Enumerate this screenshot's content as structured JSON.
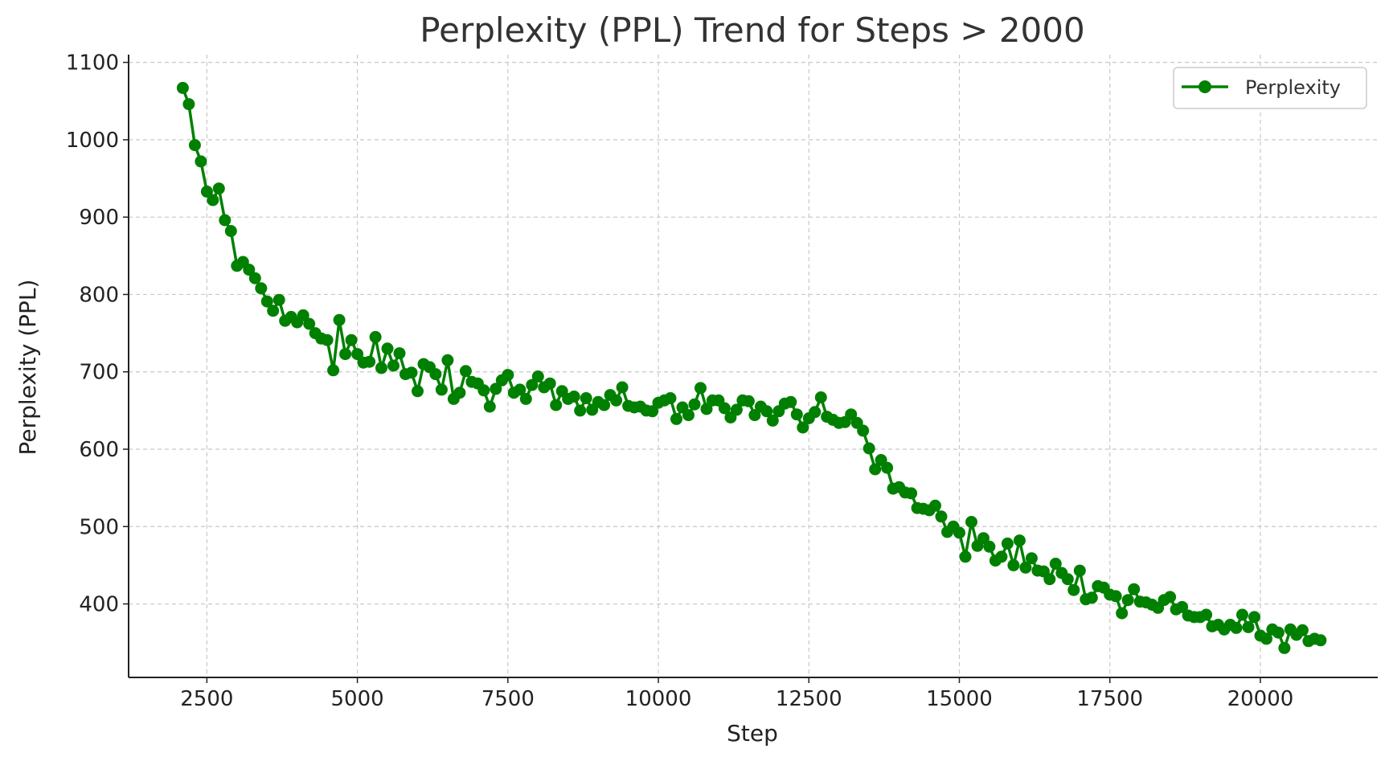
{
  "chart_data": {
    "type": "line",
    "title": "Perplexity (PPL) Trend for Steps > 2000",
    "xlabel": "Step",
    "ylabel": "Perplexity (PPL)",
    "xlim": [
      1200,
      21950
    ],
    "ylim": [
      305,
      1110
    ],
    "xticks": [
      2500,
      5000,
      7500,
      10000,
      12500,
      15000,
      17500,
      20000
    ],
    "yticks": [
      400,
      500,
      600,
      700,
      800,
      900,
      1000,
      1100
    ],
    "grid": true,
    "legend_position": "top-right",
    "series": [
      {
        "name": "Perplexity",
        "color": "#008000",
        "marker": "circle",
        "x": [
          2100,
          2200,
          2300,
          2400,
          2500,
          2600,
          2700,
          2800,
          2900,
          3000,
          3100,
          3200,
          3300,
          3400,
          3500,
          3600,
          3700,
          3800,
          3900,
          4000,
          4100,
          4200,
          4300,
          4400,
          4500,
          4600,
          4700,
          4800,
          4900,
          5000,
          5100,
          5200,
          5300,
          5400,
          5500,
          5600,
          5700,
          5800,
          5900,
          6000,
          6100,
          6200,
          6300,
          6400,
          6500,
          6600,
          6700,
          6800,
          6900,
          7000,
          7100,
          7200,
          7300,
          7400,
          7500,
          7600,
          7700,
          7800,
          7900,
          8000,
          8100,
          8200,
          8300,
          8400,
          8500,
          8600,
          8700,
          8800,
          8900,
          9000,
          9100,
          9200,
          9300,
          9400,
          9500,
          9600,
          9700,
          9800,
          9900,
          10000,
          10100,
          10200,
          10300,
          10400,
          10500,
          10600,
          10700,
          10800,
          10900,
          11000,
          11100,
          11200,
          11300,
          11400,
          11500,
          11600,
          11700,
          11800,
          11900,
          12000,
          12100,
          12200,
          12300,
          12400,
          12500,
          12600,
          12700,
          12800,
          12900,
          13000,
          13100,
          13200,
          13300,
          13400,
          13500,
          13600,
          13700,
          13800,
          13900,
          14000,
          14100,
          14200,
          14300,
          14400,
          14500,
          14600,
          14700,
          14800,
          14900,
          15000,
          15100,
          15200,
          15300,
          15400,
          15500,
          15600,
          15700,
          15800,
          15900,
          16000,
          16100,
          16200,
          16300,
          16400,
          16500,
          16600,
          16700,
          16800,
          16900,
          17000,
          17100,
          17200,
          17300,
          17400,
          17500,
          17600,
          17700,
          17800,
          17900,
          18000,
          18100,
          18200,
          18300,
          18400,
          18500,
          18600,
          18700,
          18800,
          18900,
          19000,
          19100,
          19200,
          19300,
          19400,
          19500,
          19600,
          19700,
          19800,
          19900,
          20000,
          20100,
          20200,
          20300,
          20400,
          20500,
          20600,
          20700,
          20800,
          20900,
          21000
        ],
        "y": [
          1067,
          1046,
          993,
          972,
          933,
          922,
          937,
          896,
          882,
          837,
          842,
          832,
          821,
          808,
          791,
          779,
          793,
          766,
          771,
          764,
          773,
          762,
          750,
          743,
          741,
          702,
          767,
          723,
          741,
          723,
          712,
          713,
          745,
          705,
          730,
          708,
          724,
          697,
          699,
          675,
          710,
          706,
          697,
          677,
          715,
          665,
          673,
          701,
          687,
          685,
          676,
          655,
          678,
          689,
          696,
          673,
          677,
          665,
          683,
          694,
          680,
          685,
          657,
          675,
          665,
          668,
          650,
          666,
          651,
          661,
          657,
          670,
          663,
          680,
          656,
          654,
          655,
          650,
          649,
          660,
          663,
          666,
          639,
          654,
          644,
          658,
          679,
          652,
          663,
          663,
          653,
          641,
          651,
          663,
          662,
          644,
          655,
          649,
          637,
          649,
          659,
          661,
          645,
          628,
          640,
          648,
          667,
          642,
          638,
          634,
          635,
          645,
          634,
          624,
          601,
          574,
          586,
          576,
          549,
          551,
          544,
          543,
          524,
          523,
          521,
          527,
          513,
          493,
          500,
          492,
          461,
          506,
          475,
          485,
          474,
          456,
          461,
          478,
          450,
          482,
          447,
          459,
          443,
          442,
          432,
          452,
          440,
          432,
          418,
          443,
          406,
          408,
          423,
          421,
          412,
          410,
          388,
          405,
          419,
          403,
          402,
          399,
          395,
          405,
          409,
          393,
          396,
          385,
          383,
          383,
          386,
          371,
          373,
          367,
          373,
          369,
          386,
          370,
          383,
          359,
          355,
          367,
          363,
          343,
          367,
          360,
          366,
          352,
          355,
          353
        ]
      }
    ]
  }
}
